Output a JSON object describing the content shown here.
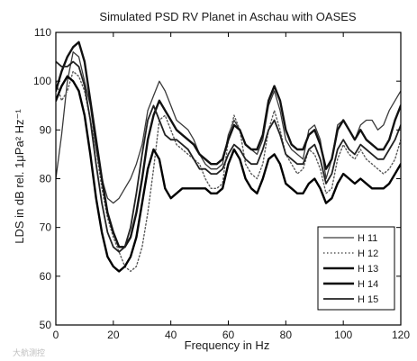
{
  "chart_data": {
    "type": "line",
    "title": "Simulated PSD RV Planet in Aschau   with OASES",
    "xlabel": "Frequency in Hz",
    "ylabel": "LDS in dB rel. 1μPa² Hz⁻¹",
    "xlim": [
      0,
      120
    ],
    "ylim": [
      50,
      110
    ],
    "xticks": [
      0,
      20,
      40,
      60,
      80,
      100,
      120
    ],
    "yticks": [
      50,
      60,
      70,
      80,
      90,
      100,
      110
    ],
    "grid": false,
    "legend_position": "bottom-right",
    "series": [
      {
        "name": "H 11",
        "style": "solid-thin",
        "color": "#3a3a3a",
        "x": [
          0,
          2,
          4,
          6,
          8,
          10,
          12,
          14,
          16,
          18,
          20,
          22,
          24,
          26,
          28,
          30,
          32,
          34,
          36,
          38,
          40,
          42,
          44,
          46,
          48,
          50,
          52,
          54,
          56,
          58,
          60,
          62,
          64,
          66,
          68,
          70,
          72,
          74,
          76,
          78,
          80,
          82,
          84,
          86,
          88,
          90,
          92,
          94,
          96,
          98,
          100,
          102,
          104,
          106,
          108,
          110,
          112,
          114,
          116,
          118,
          120
        ],
        "y": [
          80,
          89,
          100,
          106,
          105,
          100,
          95,
          86,
          80,
          76,
          75,
          76,
          78,
          80,
          83,
          87,
          94,
          97,
          100,
          98,
          95,
          92,
          91,
          90,
          88,
          85,
          83,
          82,
          82,
          83,
          89,
          92,
          90,
          87,
          86,
          85,
          88,
          95,
          98,
          94,
          88,
          86,
          85,
          84,
          90,
          91,
          88,
          80,
          84,
          91,
          92,
          90,
          88,
          91,
          92,
          92,
          90,
          91,
          94,
          96,
          98
        ]
      },
      {
        "name": "H 12",
        "style": "dotted",
        "color": "#5a5a5a",
        "x": [
          0,
          2,
          4,
          6,
          8,
          10,
          12,
          14,
          16,
          18,
          20,
          22,
          24,
          26,
          28,
          30,
          32,
          34,
          36,
          38,
          40,
          42,
          44,
          46,
          48,
          50,
          52,
          54,
          56,
          58,
          60,
          62,
          64,
          66,
          68,
          70,
          72,
          74,
          76,
          78,
          80,
          82,
          84,
          86,
          88,
          90,
          92,
          94,
          96,
          98,
          100,
          102,
          104,
          106,
          108,
          110,
          112,
          114,
          116,
          118,
          120
        ],
        "y": [
          100,
          96,
          98,
          102,
          101,
          98,
          92,
          86,
          78,
          72,
          68,
          65,
          62,
          61,
          62,
          66,
          73,
          82,
          92,
          93,
          90,
          87,
          86,
          85,
          84,
          83,
          80,
          78,
          78,
          79,
          88,
          93,
          90,
          83,
          81,
          80,
          83,
          90,
          94,
          90,
          85,
          83,
          81,
          82,
          86,
          85,
          82,
          77,
          78,
          84,
          87,
          85,
          84,
          86,
          84,
          83,
          82,
          81,
          82,
          84,
          88
        ]
      },
      {
        "name": "H 13",
        "style": "solid-thick",
        "color": "#111111",
        "x": [
          0,
          2,
          4,
          6,
          8,
          10,
          12,
          14,
          16,
          18,
          20,
          22,
          24,
          26,
          28,
          30,
          32,
          34,
          36,
          38,
          40,
          42,
          44,
          46,
          48,
          50,
          52,
          54,
          56,
          58,
          60,
          62,
          64,
          66,
          68,
          70,
          72,
          74,
          76,
          78,
          80,
          82,
          84,
          86,
          88,
          90,
          92,
          94,
          96,
          98,
          100,
          102,
          104,
          106,
          108,
          110,
          112,
          114,
          116,
          118,
          120
        ],
        "y": [
          98,
          102,
          105,
          107,
          108,
          104,
          96,
          88,
          80,
          73,
          69,
          66,
          66,
          68,
          73,
          80,
          88,
          93,
          96,
          94,
          92,
          90,
          89,
          88,
          87,
          85,
          84,
          83,
          83,
          84,
          88,
          91,
          90,
          87,
          86,
          86,
          89,
          96,
          99,
          96,
          90,
          87,
          86,
          86,
          89,
          90,
          87,
          82,
          84,
          90,
          92,
          90,
          88,
          90,
          88,
          87,
          86,
          86,
          88,
          92,
          95
        ]
      },
      {
        "name": "H 14",
        "style": "solid-thick",
        "color": "#000000",
        "x": [
          0,
          2,
          4,
          6,
          8,
          10,
          12,
          14,
          16,
          18,
          20,
          22,
          24,
          26,
          28,
          30,
          32,
          34,
          36,
          38,
          40,
          42,
          44,
          46,
          48,
          50,
          52,
          54,
          56,
          58,
          60,
          62,
          64,
          66,
          68,
          70,
          72,
          74,
          76,
          78,
          80,
          82,
          84,
          86,
          88,
          90,
          92,
          94,
          96,
          98,
          100,
          102,
          104,
          106,
          108,
          110,
          112,
          114,
          116,
          118,
          120
        ],
        "y": [
          96,
          99,
          101,
          100,
          98,
          93,
          85,
          76,
          69,
          64,
          62,
          61,
          62,
          64,
          68,
          75,
          82,
          86,
          84,
          78,
          76,
          77,
          78,
          78,
          78,
          78,
          78,
          77,
          77,
          78,
          83,
          86,
          84,
          80,
          78,
          77,
          80,
          84,
          85,
          83,
          79,
          78,
          77,
          77,
          79,
          80,
          78,
          75,
          76,
          79,
          81,
          80,
          79,
          80,
          79,
          78,
          78,
          78,
          79,
          81,
          83
        ]
      },
      {
        "name": "H 15",
        "style": "solid-medium",
        "color": "#222222",
        "x": [
          0,
          2,
          4,
          6,
          8,
          10,
          12,
          14,
          16,
          18,
          20,
          22,
          24,
          26,
          28,
          30,
          32,
          34,
          36,
          38,
          40,
          42,
          44,
          46,
          48,
          50,
          52,
          54,
          56,
          58,
          60,
          62,
          64,
          66,
          68,
          70,
          72,
          74,
          76,
          78,
          80,
          82,
          84,
          86,
          88,
          90,
          92,
          94,
          96,
          98,
          100,
          102,
          104,
          106,
          108,
          110,
          112,
          114,
          116,
          118,
          120
        ],
        "y": [
          104,
          103,
          103,
          104,
          103,
          99,
          92,
          83,
          75,
          69,
          66,
          65,
          66,
          70,
          77,
          85,
          92,
          95,
          92,
          89,
          88,
          88,
          87,
          86,
          84,
          82,
          82,
          81,
          81,
          82,
          85,
          87,
          86,
          84,
          83,
          83,
          86,
          90,
          92,
          89,
          85,
          84,
          83,
          83,
          86,
          87,
          84,
          79,
          81,
          86,
          88,
          86,
          85,
          87,
          86,
          85,
          84,
          84,
          86,
          88,
          91
        ]
      }
    ]
  },
  "watermark": {
    "text": "大航测控"
  }
}
